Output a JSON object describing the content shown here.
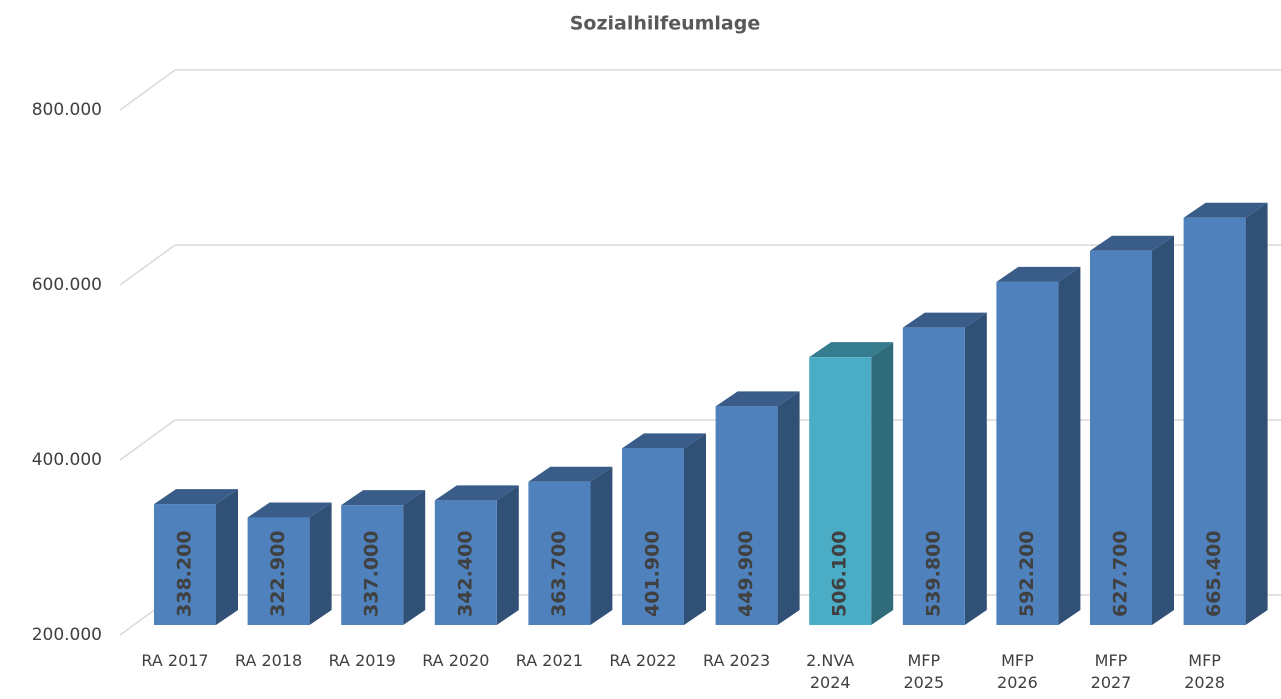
{
  "chart_data": {
    "type": "bar3d",
    "title": "Sozialhilfeumlage",
    "categories": [
      "RA 2017",
      "RA 2018",
      "RA 2019",
      "RA 2020",
      "RA 2021",
      "RA 2022",
      "RA 2023",
      "2.NVA 2024",
      "MFP 2025",
      "MFP 2026",
      "MFP 2027",
      "MFP 2028"
    ],
    "values": [
      338200,
      322900,
      337000,
      342400,
      363700,
      401900,
      449900,
      506100,
      539800,
      592200,
      627700,
      665400
    ],
    "value_labels": [
      "338.200",
      "322.900",
      "337.000",
      "342.400",
      "363.700",
      "401.900",
      "449.900",
      "506.100",
      "539.800",
      "592.200",
      "627.700",
      "665.400"
    ],
    "colors": [
      "#4f81bd",
      "#4f81bd",
      "#4f81bd",
      "#4f81bd",
      "#4f81bd",
      "#4f81bd",
      "#4f81bd",
      "#4bacc6",
      "#4f81bd",
      "#4f81bd",
      "#4f81bd",
      "#4f81bd"
    ],
    "ylim": [
      200000,
      800000
    ],
    "yticks": [
      {
        "value": 200000,
        "label": "200.000"
      },
      {
        "value": 400000,
        "label": "400.000"
      },
      {
        "value": 600000,
        "label": "600.000"
      },
      {
        "value": 800000,
        "label": "800.000"
      }
    ],
    "grid": true
  }
}
